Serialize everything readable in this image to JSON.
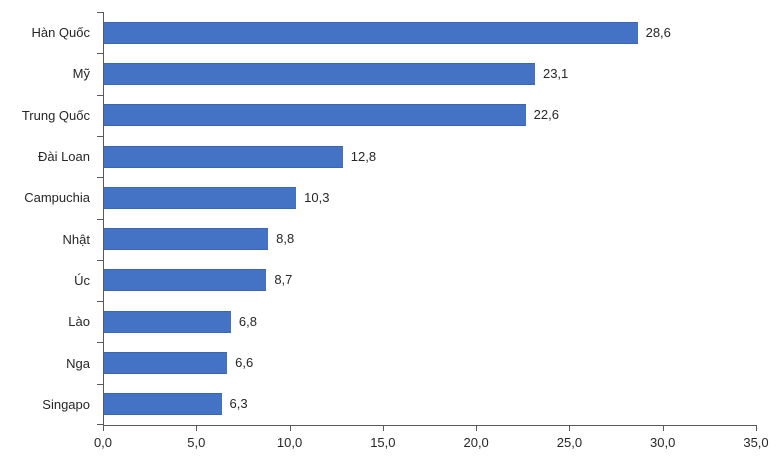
{
  "chart_data": {
    "type": "bar",
    "orientation": "horizontal",
    "title": "",
    "xlabel": "",
    "ylabel": "",
    "categories": [
      "Hàn Quốc",
      "Mỹ",
      "Trung Quốc",
      "Đài Loan",
      "Campuchia",
      "Nhật",
      "Úc",
      "Lào",
      "Nga",
      "Singapo"
    ],
    "values": [
      28.6,
      23.1,
      22.6,
      12.8,
      10.3,
      8.8,
      8.7,
      6.8,
      6.6,
      6.3
    ],
    "data_labels": [
      "28,6",
      "23,1",
      "22,6",
      "12,8",
      "10,3",
      "8,8",
      "8,7",
      "6,8",
      "6,6",
      "6,3"
    ],
    "x_ticks": [
      0,
      5,
      10,
      15,
      20,
      25,
      30,
      35
    ],
    "x_tick_labels": [
      "0,0",
      "5,0",
      "10,0",
      "15,0",
      "20,0",
      "25,0",
      "30,0",
      "35,0"
    ],
    "xlim": [
      0,
      35
    ],
    "grid": false,
    "legend": false,
    "bar_color": "#4472C4",
    "bar_border_color": "#3c66b0",
    "axis_color": "#595959",
    "text_color": "#262626"
  }
}
